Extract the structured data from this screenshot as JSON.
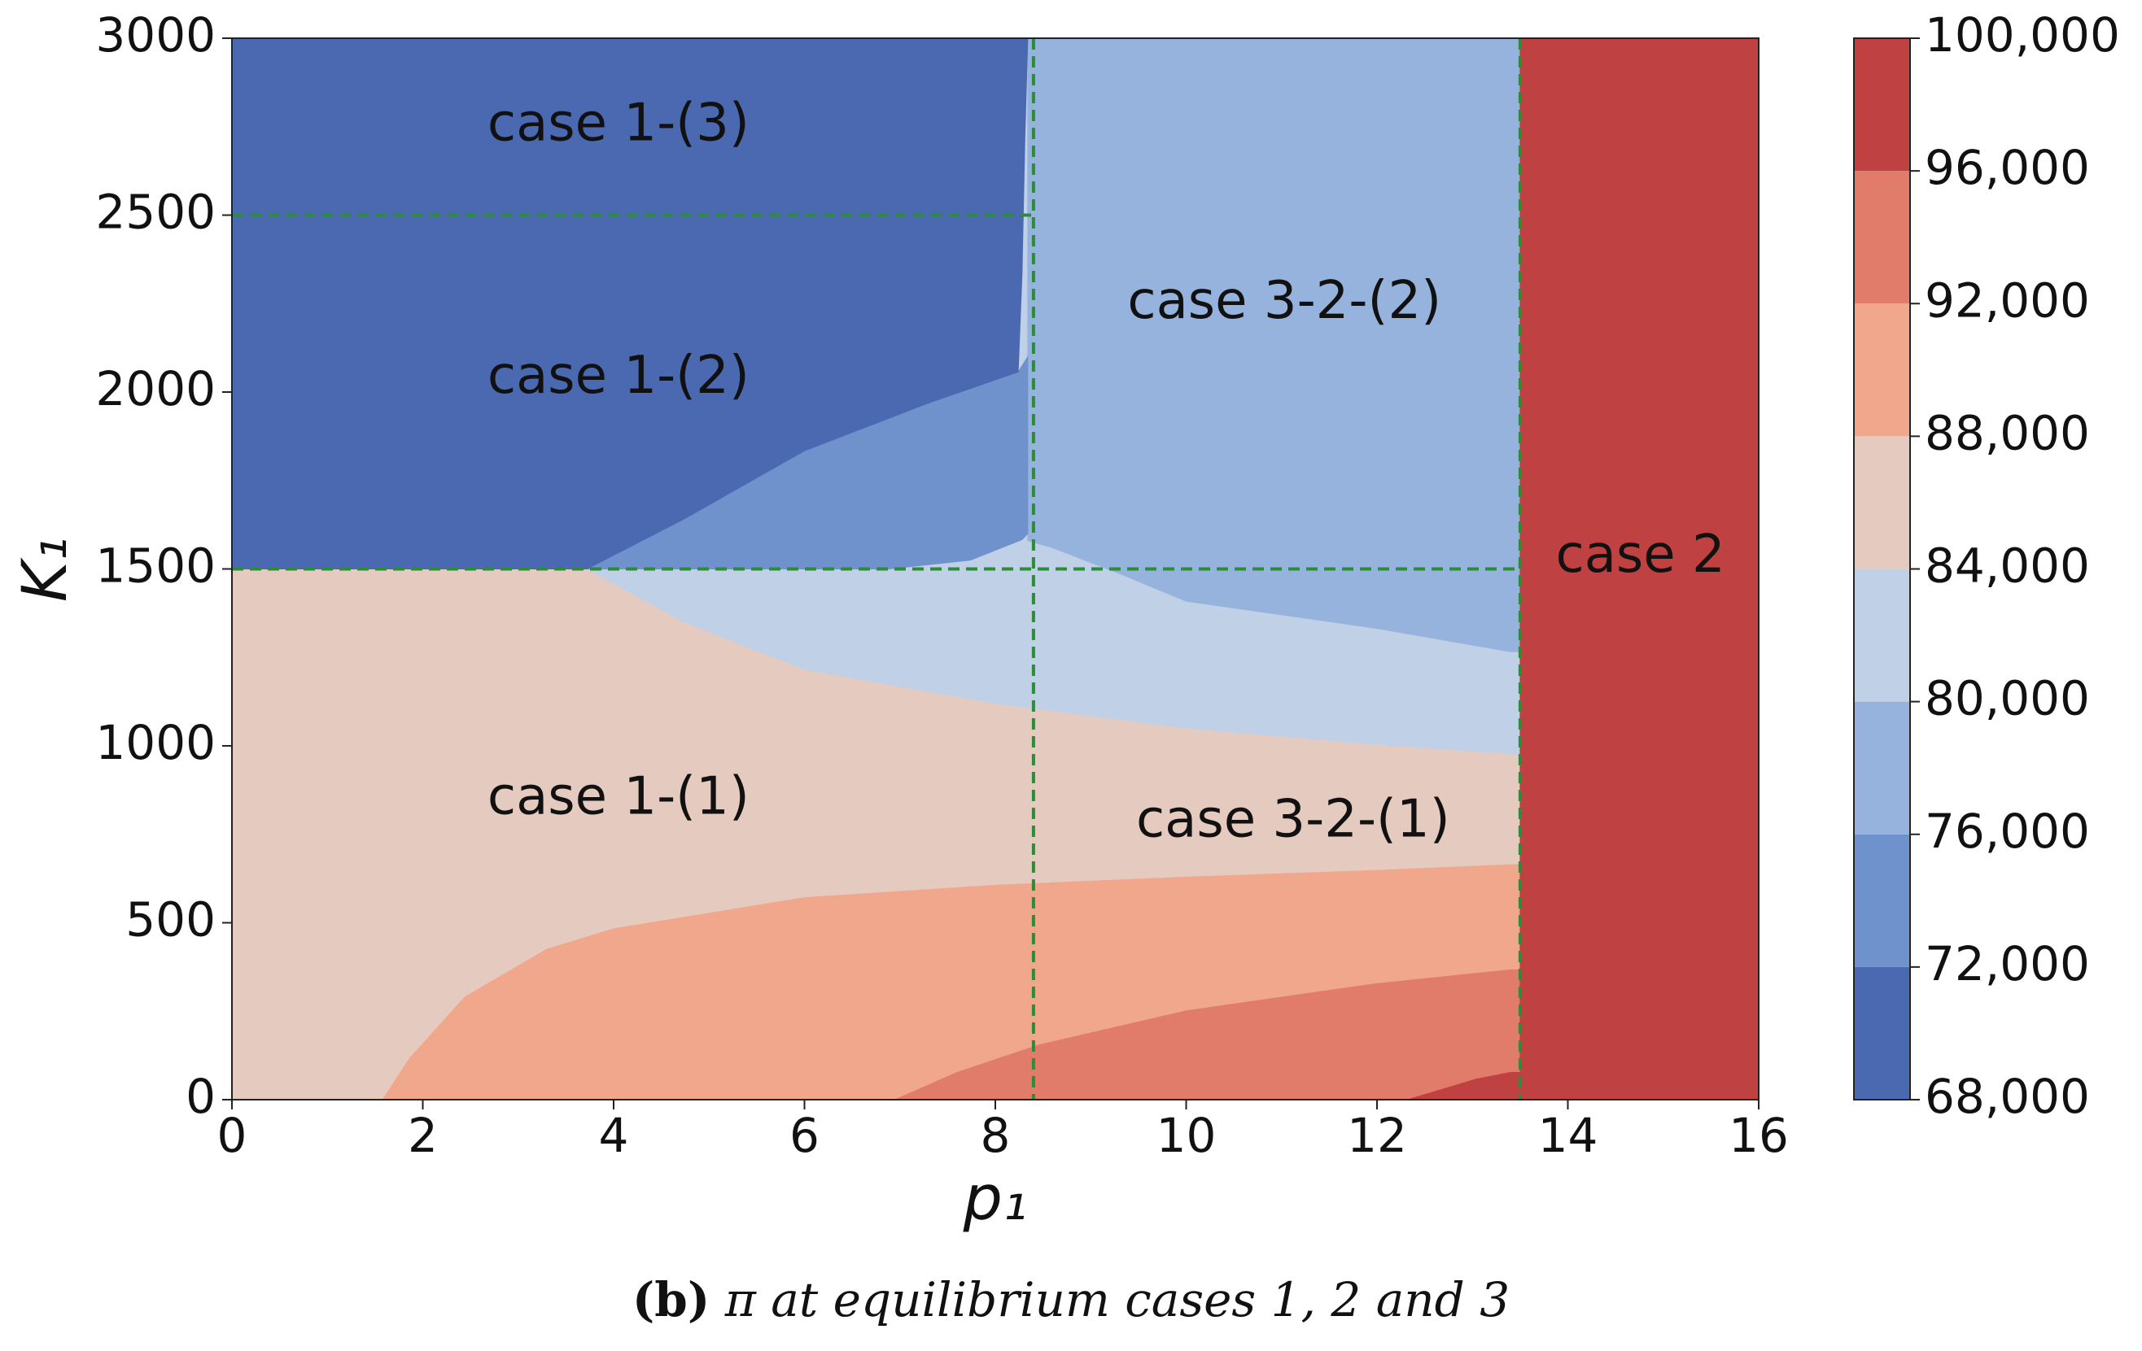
{
  "chart_data": {
    "type": "contour",
    "xlabel": "p₁",
    "ylabel": "K₁",
    "caption_label": "(b)",
    "caption": "π at equilibrium cases 1, 2 and 3",
    "xlim": [
      0,
      16
    ],
    "ylim": [
      0,
      3000
    ],
    "xticks": [
      0,
      2,
      4,
      6,
      8,
      10,
      12,
      14,
      16
    ],
    "yticks": [
      0,
      500,
      1000,
      1500,
      2000,
      2500,
      3000
    ],
    "levels": [
      {
        "value": 68000,
        "label": "68,000"
      },
      {
        "value": 72000,
        "label": "72,000"
      },
      {
        "value": 76000,
        "label": "76,000"
      },
      {
        "value": 80000,
        "label": "80,000"
      },
      {
        "value": 84000,
        "label": "84,000"
      },
      {
        "value": 88000,
        "label": "88,000"
      },
      {
        "value": 92000,
        "label": "92,000"
      },
      {
        "value": 96000,
        "label": "96,000"
      },
      {
        "value": 100000,
        "label": "100,000"
      }
    ],
    "colors": [
      "#4b69b1",
      "#6f91cc",
      "#96b3de",
      "#c0d0e6",
      "#e5cbbf",
      "#f0a78c",
      "#e07c69",
      "#c04142"
    ],
    "regions": [
      {
        "level": 84000,
        "x": [
          0,
          16,
          16,
          0
        ],
        "y": [
          0,
          0,
          3000,
          3000
        ]
      },
      {
        "level": 80000,
        "x": [
          3.72,
          4.73,
          6,
          8,
          10,
          12,
          13.44,
          13.5,
          13.5,
          3.72
        ],
        "y": [
          1500,
          1351,
          1216,
          1120,
          1050,
          1004,
          977,
          977,
          3000,
          3000
        ]
      },
      {
        "level": 76000,
        "x": [
          8.34,
          13.5,
          13.5,
          13.4,
          12,
          10,
          9.31,
          8.6,
          8.34
        ],
        "y": [
          3000,
          3000,
          1266,
          1266,
          1332,
          1409,
          1486,
          1560,
          1580
        ]
      },
      {
        "level": 72000,
        "x": [
          3.72,
          4.73,
          6,
          7.3,
          8.24,
          8.34,
          8.34,
          8.28,
          7.74,
          6.88
        ],
        "y": [
          1500,
          1640,
          1834,
          1969,
          2057,
          2100,
          1600,
          1583,
          1525,
          1500
        ]
      },
      {
        "level": 68000,
        "x": [
          0,
          3.72,
          4.73,
          6,
          7.3,
          8.24,
          8.28,
          8.31,
          8.34,
          0
        ],
        "y": [
          1500,
          1500,
          1640,
          1834,
          1969,
          2057,
          2335,
          2721,
          3000,
          3000
        ]
      },
      {
        "level": 88000,
        "x": [
          1.58,
          1.86,
          2.44,
          3.3,
          4,
          6,
          8,
          10,
          12,
          13.4,
          13.5,
          13.5
        ],
        "y": [
          0,
          116,
          290,
          425,
          483,
          571,
          606,
          629,
          648,
          664,
          664,
          0
        ]
      },
      {
        "level": 92000,
        "x": [
          6.95,
          7.6,
          8.45,
          10,
          12,
          13.4,
          13.5,
          13.5
        ],
        "y": [
          0,
          77,
          154,
          251,
          328,
          367,
          367,
          0
        ]
      },
      {
        "level": 96000,
        "x": [
          12.32,
          13.04,
          13.4,
          13.5,
          13.5
        ],
        "y": [
          0,
          58,
          77,
          77,
          0
        ]
      },
      {
        "level": 96000,
        "x": [
          13.5,
          16,
          16,
          13.5
        ],
        "y": [
          0,
          0,
          3000,
          3000
        ]
      }
    ],
    "vlines": [
      8.4,
      13.5
    ],
    "hlines": [
      {
        "y": 1500,
        "xlim": [
          0,
          13.5
        ]
      },
      {
        "y": 2500,
        "xlim": [
          0,
          8.4
        ]
      }
    ],
    "line_color": "#2e8b3a",
    "annotations": [
      {
        "text": "case 1-(3)",
        "x": 4.05,
        "y": 2752
      },
      {
        "text": "case 1-(2)",
        "x": 4.05,
        "y": 2038
      },
      {
        "text": "case 1-(1)",
        "x": 4.05,
        "y": 849
      },
      {
        "text": "case 3-2-(2)",
        "x": 11.03,
        "y": 2250
      },
      {
        "text": "case 3-2-(1)",
        "x": 11.12,
        "y": 784
      },
      {
        "text": "case 2",
        "x": 14.76,
        "y": 1532
      }
    ]
  }
}
